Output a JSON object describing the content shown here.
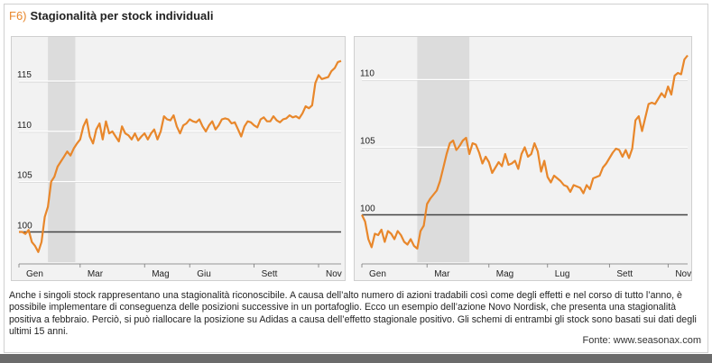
{
  "figure": {
    "tag": "F6)",
    "title": "Stagionalità per stock individuali"
  },
  "caption": "Anche i singoli stock rappresentano una stagionalità riconoscibile. A causa dell’alto numero di azioni tradabili così come degli effetti e nel corso di tutto l’anno, è possibile implementare di conseguenza delle posizioni successive in un portafoglio. Ecco un esempio dell’azione Novo Nordisk, che presenta una stagionalità positiva a febbraio. Perciò, si può riallocare la posizione su Adidas a causa dell’effetto stagionale positivo. Gli schemi di entrambi gli stock sono basati sui dati degli ultimi 15 anni.",
  "source": "Fonte: www.seasonax.com",
  "colors": {
    "line": "#e8872b",
    "shade": "#dcdcdc",
    "baseline": "#444444",
    "grid": "#ffffff"
  },
  "chart_data": [
    {
      "type": "line",
      "title": "",
      "xlabel": "",
      "ylabel": "",
      "x_ticks": [
        "Gen",
        "Mar",
        "Mag",
        "Giu",
        "Sett",
        "Nov"
      ],
      "x_tick_pos": [
        0.0,
        1.9,
        3.9,
        5.3,
        7.3,
        9.3
      ],
      "y_ticks": [
        100,
        105,
        110,
        115
      ],
      "ylim": [
        97,
        118.5
      ],
      "xlim": [
        0,
        10
      ],
      "baseline": 100,
      "highlight": [
        0.9,
        1.75
      ],
      "x": [
        0.0,
        0.1,
        0.2,
        0.3,
        0.4,
        0.5,
        0.6,
        0.7,
        0.8,
        0.9,
        1.0,
        1.1,
        1.2,
        1.3,
        1.4,
        1.5,
        1.6,
        1.7,
        1.8,
        1.9,
        2.0,
        2.1,
        2.2,
        2.3,
        2.4,
        2.5,
        2.6,
        2.7,
        2.8,
        2.9,
        3.0,
        3.1,
        3.2,
        3.3,
        3.4,
        3.5,
        3.6,
        3.7,
        3.8,
        3.9,
        4.0,
        4.1,
        4.2,
        4.3,
        4.4,
        4.5,
        4.6,
        4.7,
        4.8,
        4.9,
        5.0,
        5.1,
        5.2,
        5.3,
        5.4,
        5.5,
        5.6,
        5.7,
        5.8,
        5.9,
        6.0,
        6.1,
        6.2,
        6.3,
        6.4,
        6.5,
        6.6,
        6.7,
        6.8,
        6.9,
        7.0,
        7.1,
        7.2,
        7.3,
        7.4,
        7.5,
        7.6,
        7.7,
        7.8,
        7.9,
        8.0,
        8.1,
        8.2,
        8.3,
        8.4,
        8.5,
        8.6,
        8.7,
        8.8,
        8.9,
        9.0,
        9.1,
        9.2,
        9.3,
        9.4,
        9.5,
        9.6,
        9.7,
        9.8,
        9.9,
        10.0
      ],
      "y": [
        100,
        100,
        99.8,
        100.2,
        99,
        98.6,
        98,
        99,
        101.5,
        102.5,
        105,
        105.5,
        106.5,
        107,
        107.5,
        108,
        107.6,
        108.3,
        108.8,
        109.2,
        110.5,
        111.2,
        109.5,
        108.8,
        110.2,
        110.8,
        109.2,
        111,
        109.8,
        110,
        109.5,
        109,
        110.5,
        109.8,
        109.6,
        109.2,
        109.8,
        109.1,
        109.5,
        109.8,
        109.2,
        109.8,
        110.2,
        109.2,
        110,
        111.5,
        111.2,
        111.1,
        111.6,
        110.5,
        109.8,
        110.6,
        110.8,
        111.2,
        111,
        110.9,
        111.2,
        110.5,
        110,
        110.6,
        111,
        110.2,
        110.6,
        111.2,
        111.3,
        111.2,
        110.8,
        110.9,
        110.2,
        109.5,
        110.5,
        111,
        110.9,
        110.6,
        110.4,
        111.2,
        111.4,
        111,
        111,
        111.5,
        111.1,
        110.9,
        111.2,
        111.3,
        111.6,
        111.4,
        111.5,
        111.3,
        111.8,
        112.5,
        112.3,
        112.6,
        114.8,
        115.6,
        115.2,
        115.3,
        115.4,
        116,
        116.3,
        116.9,
        117
      ],
      "categories": []
    },
    {
      "type": "line",
      "title": "",
      "xlabel": "",
      "ylabel": "",
      "x_ticks": [
        "Gen",
        "Mar",
        "Mag",
        "Lug",
        "Sett",
        "Nov"
      ],
      "x_tick_pos": [
        0.0,
        2.0,
        3.9,
        5.7,
        7.6,
        9.4
      ],
      "y_ticks": [
        100,
        105,
        110
      ],
      "ylim": [
        96.5,
        112.5
      ],
      "xlim": [
        0,
        10
      ],
      "baseline": 100,
      "highlight": [
        1.7,
        3.3
      ],
      "x": [
        0.0,
        0.1,
        0.2,
        0.3,
        0.4,
        0.5,
        0.6,
        0.7,
        0.8,
        0.9,
        1.0,
        1.1,
        1.2,
        1.3,
        1.4,
        1.5,
        1.6,
        1.7,
        1.8,
        1.9,
        2.0,
        2.1,
        2.2,
        2.3,
        2.4,
        2.5,
        2.6,
        2.7,
        2.8,
        2.9,
        3.0,
        3.1,
        3.2,
        3.3,
        3.4,
        3.5,
        3.6,
        3.7,
        3.8,
        3.9,
        4.0,
        4.1,
        4.2,
        4.3,
        4.4,
        4.5,
        4.6,
        4.7,
        4.8,
        4.9,
        5.0,
        5.1,
        5.2,
        5.3,
        5.4,
        5.5,
        5.6,
        5.7,
        5.8,
        5.9,
        6.0,
        6.1,
        6.2,
        6.3,
        6.4,
        6.5,
        6.6,
        6.7,
        6.8,
        6.9,
        7.0,
        7.1,
        7.2,
        7.3,
        7.4,
        7.5,
        7.6,
        7.7,
        7.8,
        7.9,
        8.0,
        8.1,
        8.2,
        8.3,
        8.4,
        8.5,
        8.6,
        8.7,
        8.8,
        8.9,
        9.0,
        9.1,
        9.2,
        9.3,
        9.4,
        9.5,
        9.6,
        9.7,
        9.8,
        9.9,
        10.0
      ],
      "y": [
        100,
        99.5,
        98.2,
        97.6,
        98.6,
        98.5,
        98.9,
        98,
        98.8,
        98.6,
        98.2,
        98.8,
        98.5,
        98,
        97.8,
        98.2,
        97.7,
        97.5,
        98.8,
        99.2,
        100.8,
        101.2,
        101.5,
        101.8,
        102.5,
        103.5,
        104.5,
        105.3,
        105.5,
        104.8,
        105.1,
        105.5,
        105.7,
        104.5,
        105.3,
        105.2,
        104.6,
        103.8,
        104.3,
        103.9,
        103.1,
        103.5,
        103.9,
        103.6,
        104.5,
        103.7,
        103.8,
        104,
        103.4,
        104.5,
        105,
        104.3,
        104.5,
        105.3,
        104.7,
        103.2,
        104,
        102.8,
        102.4,
        102.9,
        102.7,
        102.5,
        102.2,
        102.1,
        101.7,
        102.2,
        102.1,
        102,
        101.6,
        102.2,
        101.9,
        102.7,
        102.8,
        102.9,
        103.5,
        103.8,
        104.2,
        104.6,
        104.9,
        104.8,
        104.3,
        104.8,
        104.2,
        104.9,
        107,
        107.3,
        106.2,
        107.2,
        108.2,
        108.3,
        108.2,
        108.6,
        109,
        108.7,
        109.5,
        108.9,
        110.3,
        110.5,
        110.4,
        111.5,
        111.8
      ],
      "categories": []
    }
  ]
}
